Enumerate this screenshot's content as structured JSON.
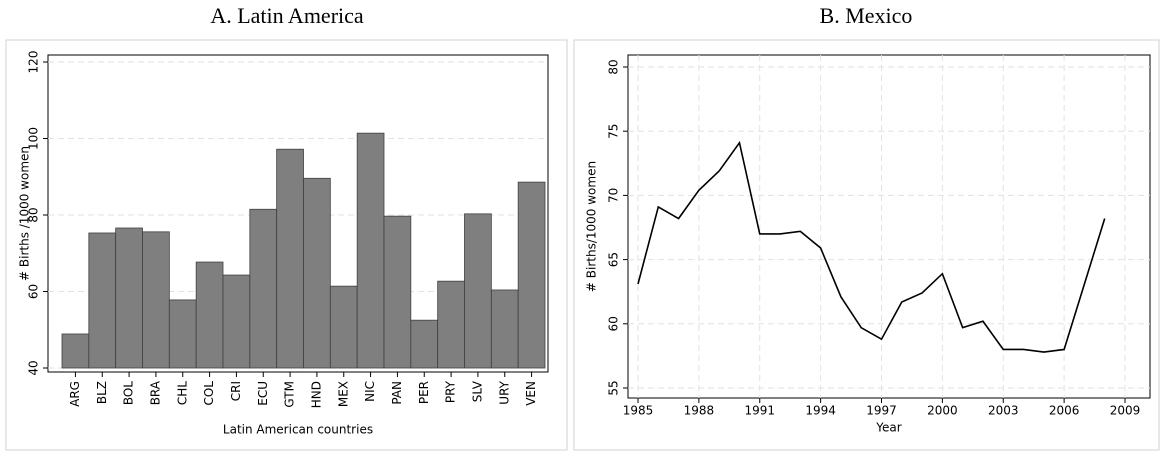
{
  "chart_data": [
    {
      "type": "bar",
      "title": "A. Latin America",
      "xlabel": "Latin American countries",
      "ylabel": "# Births /1000 women",
      "categories": [
        "ARG",
        "BLZ",
        "BOL",
        "BRA",
        "CHL",
        "COL",
        "CRI",
        "ECU",
        "GTM",
        "HND",
        "MEX",
        "NIC",
        "PAN",
        "PER",
        "PRY",
        "SLV",
        "URY",
        "VEN"
      ],
      "values": [
        48.9,
        75.3,
        76.6,
        75.6,
        57.8,
        67.7,
        64.3,
        81.5,
        97.2,
        89.6,
        61.4,
        101.4,
        79.7,
        52.5,
        62.7,
        80.3,
        60.4,
        88.6
      ],
      "color": "#7f7f7f",
      "ylim": [
        40,
        120
      ],
      "yticks": [
        40,
        60,
        80,
        100,
        120
      ],
      "grid": true
    },
    {
      "type": "line",
      "title": "B. Mexico",
      "xlabel": "Year",
      "ylabel": "# Births/1000 women",
      "x": [
        1985,
        1986,
        1987,
        1988,
        1989,
        1990,
        1991,
        1992,
        1993,
        1994,
        1995,
        1996,
        1997,
        1998,
        1999,
        2000,
        2001,
        2002,
        2003,
        2004,
        2005,
        2006,
        2007,
        2008
      ],
      "values": [
        63.1,
        69.1,
        68.2,
        70.4,
        71.9,
        74.1,
        67.0,
        67.0,
        67.2,
        65.9,
        62.1,
        59.7,
        58.8,
        61.7,
        62.4,
        63.9,
        59.7,
        60.2,
        58.0,
        58.0,
        57.8,
        58.0,
        63.1,
        68.2
      ],
      "color": "#000000",
      "xlim": [
        1985,
        2009
      ],
      "xticks": [
        1985,
        1988,
        1991,
        1994,
        1997,
        2000,
        2003,
        2006,
        2009
      ],
      "ylim": [
        55,
        80
      ],
      "yticks": [
        55,
        60,
        65,
        70,
        75,
        80
      ],
      "grid": true
    }
  ]
}
